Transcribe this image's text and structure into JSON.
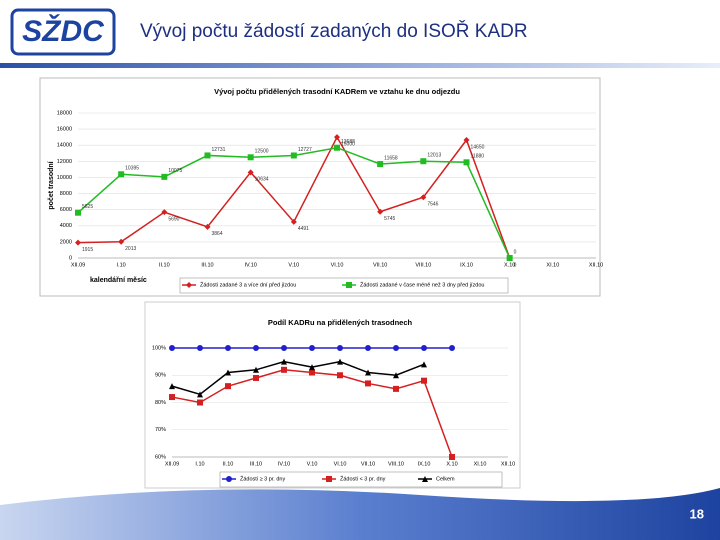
{
  "logo": "SŽDC",
  "title": "Vývoj počtu žádostí zadaných do ISOŘ KADR",
  "page_number": "18",
  "chart_data": [
    {
      "type": "line",
      "title": "Vývoj počtu přidělených trasodní KADRem ve vztahu ke dnu odjezdu",
      "ylabel": "počet trasodní",
      "xlabel": "kalendářní měsíc",
      "categories": [
        "XII.09",
        "I.10",
        "II.10",
        "III.10",
        "IV.10",
        "V.10",
        "VI.10",
        "VII.10",
        "VIII.10",
        "IX.10",
        "X.10",
        "XI.10",
        "XII.10"
      ],
      "series": [
        {
          "name": "Žádosti zadané 3 a více dní před jízdou",
          "color": "#d42020",
          "marker": "diamond",
          "values": [
            1915,
            2013,
            5690,
            3864,
            10634,
            4491,
            15000,
            5745,
            7546,
            14650,
            0,
            null,
            null
          ]
        },
        {
          "name": "Žádosti zadané v čase méně než 3 dny před jízdou",
          "color": "#22bb22",
          "marker": "square",
          "values": [
            5625,
            10395,
            10075,
            12731,
            12500,
            12727,
            13688,
            11658,
            12013,
            11880,
            0,
            null,
            null
          ]
        }
      ],
      "ylim": [
        0,
        18000
      ],
      "yticks": [
        0,
        2000,
        4000,
        6000,
        8000,
        10000,
        12000,
        14000,
        16000,
        18000
      ],
      "data_labels": true,
      "grid": true
    },
    {
      "type": "line",
      "title": "Podíl KADRu na přidělených trasodnech",
      "categories": [
        "XII.09",
        "I.10",
        "II.10",
        "III.10",
        "IV.10",
        "V.10",
        "VI.10",
        "VII.10",
        "VIII.10",
        "IX.10",
        "X.10",
        "XI.10",
        "XII.10"
      ],
      "series": [
        {
          "name": "Žádosti ≥ 3 pr. dny",
          "color": "#2020cc",
          "marker": "circle",
          "values": [
            100,
            100,
            100,
            100,
            100,
            100,
            100,
            100,
            100,
            100,
            100,
            null,
            null
          ]
        },
        {
          "name": "Žádosti < 3 pr. dny",
          "color": "#d42020",
          "marker": "square",
          "values": [
            82,
            80,
            86,
            89,
            92,
            91,
            90,
            87,
            85,
            88,
            60,
            null,
            null
          ]
        },
        {
          "name": "Celkem",
          "color": "#000000",
          "marker": "triangle",
          "values": [
            86,
            83,
            91,
            92,
            95,
            93,
            95,
            91,
            90,
            94,
            null,
            null,
            null
          ]
        }
      ],
      "ylim": [
        60,
        100
      ],
      "yticks": [
        {
          "value": 60,
          "label": "60%"
        },
        {
          "value": 70,
          "label": "70%"
        },
        {
          "value": 80,
          "label": "80%"
        },
        {
          "value": 90,
          "label": "90%"
        },
        {
          "value": 100,
          "label": "100%"
        }
      ],
      "data_labels": false,
      "grid": true
    }
  ]
}
